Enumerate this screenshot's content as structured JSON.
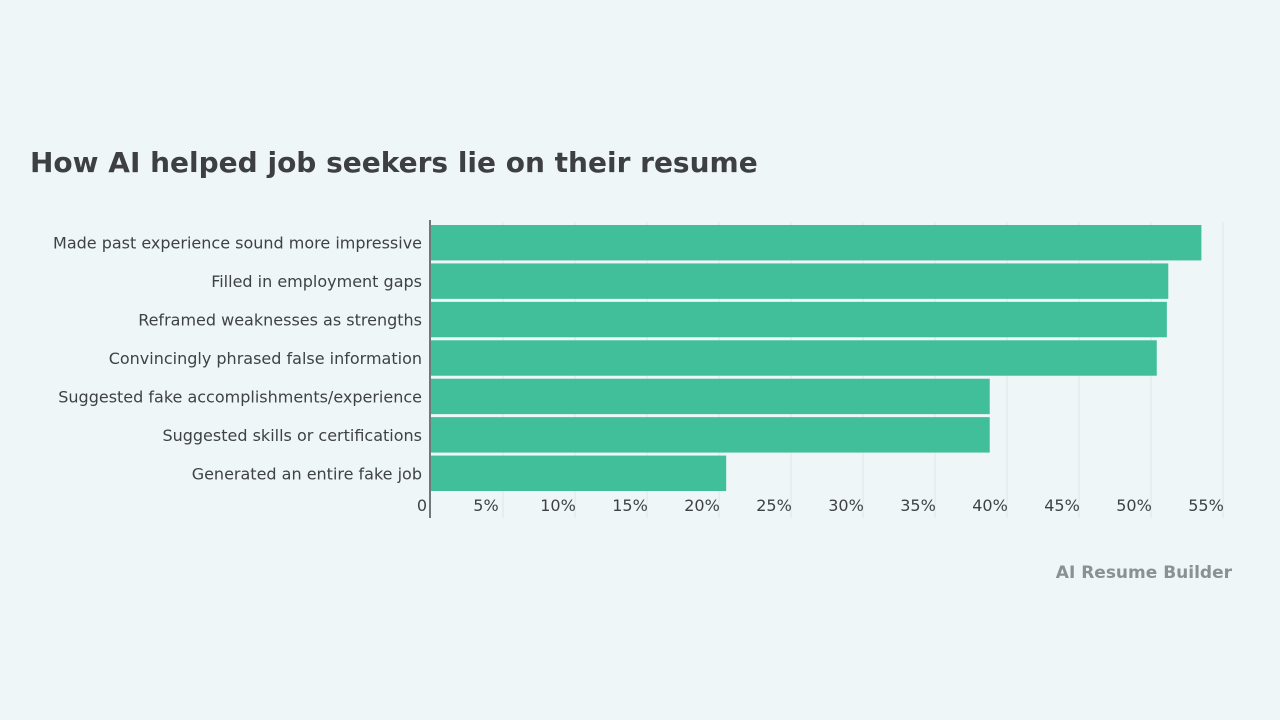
{
  "chart_data": {
    "type": "bar",
    "orientation": "horizontal",
    "title": "How AI helped job seekers lie on their resume",
    "categories": [
      "Made past experience sound more impressive",
      "Filled in employment gaps",
      "Reframed weaknesses as strengths",
      "Convincingly phrased false information",
      "Suggested fake accomplishments/experience",
      "Suggested skills or certifications",
      "Generated an entire fake job"
    ],
    "values": [
      53.5,
      51.2,
      51.1,
      50.4,
      38.8,
      38.8,
      20.5
    ],
    "xlim": [
      0,
      55
    ],
    "ticks": [
      "0",
      "5%",
      "10%",
      "15%",
      "20%",
      "25%",
      "30%",
      "35%",
      "40%",
      "45%",
      "50%",
      "55%"
    ],
    "grid": true,
    "bar_color": "#41bf9b",
    "source": "AI Resume Builder"
  }
}
